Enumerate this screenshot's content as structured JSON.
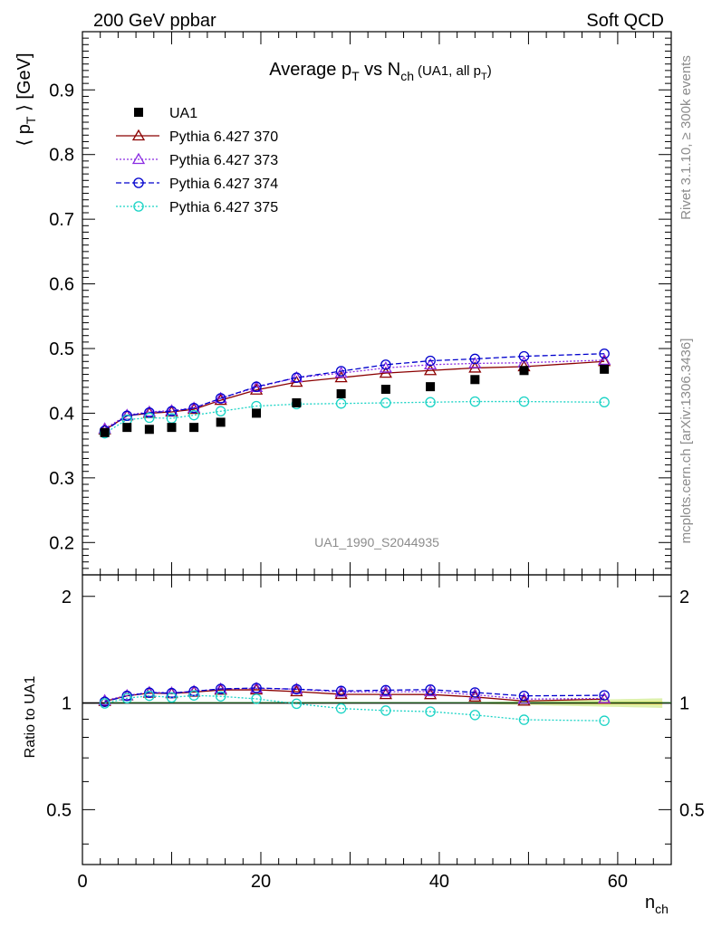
{
  "header": {
    "left": "200 GeV ppbar",
    "right": "Soft QCD"
  },
  "side_labels": {
    "rivet": "Rivet 3.1.10, ≥ 300k events",
    "mcplots": "mcplots.cern.ch [arXiv:1306.3436]"
  },
  "chart_data": {
    "type": "line",
    "title": "Average p_T vs N_ch (UA1, all p_T)",
    "title_parts": {
      "main": "Average p",
      "sub1": "T",
      "mid": " vs N",
      "sub2": "ch",
      "small": "(UA1, all p",
      "small_sub": "T",
      "small_end": ")"
    },
    "analysis_label": "UA1_1990_S2044935",
    "xlabel": "n_ch",
    "xlabel_parts": {
      "main": "n",
      "sub": "ch"
    },
    "ylabel": "⟨ p_T ⟩ [GeV]",
    "ylabel_parts": {
      "pre": "⟨ p",
      "sub": "T",
      "post": " ⟩ [GeV]"
    },
    "ratio_ylabel": "Ratio to UA1",
    "xlim": [
      0,
      66
    ],
    "ylim": [
      0.15,
      0.99
    ],
    "ratio_ylim": [
      0.35,
      2.3
    ],
    "x_ticks": [
      0,
      20,
      40,
      60
    ],
    "x_tick_labels": [
      "0",
      "20",
      "40",
      "60"
    ],
    "y_ticks": [
      0.2,
      0.3,
      0.4,
      0.5,
      0.6,
      0.7,
      0.8,
      0.9
    ],
    "y_tick_labels": [
      "0.2",
      "0.3",
      "0.4",
      "0.5",
      "0.6",
      "0.7",
      "0.8",
      "0.9"
    ],
    "ratio_ticks": [
      0.5,
      1,
      2
    ],
    "ratio_tick_labels": [
      "0.5",
      "1",
      "2"
    ],
    "x": [
      2.5,
      5,
      7.5,
      10,
      12.5,
      15.5,
      19.5,
      24,
      29,
      34,
      39,
      44,
      49.5,
      58.5
    ],
    "data": {
      "name": "UA1",
      "values": [
        0.37,
        0.378,
        0.375,
        0.378,
        0.378,
        0.386,
        0.4,
        0.416,
        0.43,
        0.437,
        0.441,
        0.452,
        0.466,
        0.468
      ]
    },
    "series": [
      {
        "name": "Pythia 6.427 370",
        "color": "#8b0000",
        "dash": "",
        "marker": "triangle",
        "values": [
          0.374,
          0.396,
          0.4,
          0.402,
          0.406,
          0.42,
          0.436,
          0.448,
          0.455,
          0.462,
          0.466,
          0.47,
          0.472,
          0.48
        ]
      },
      {
        "name": "Pythia 6.427 373",
        "color": "#8a2be2",
        "dash": "2,2",
        "marker": "triangle",
        "values": [
          0.376,
          0.397,
          0.402,
          0.404,
          0.408,
          0.423,
          0.44,
          0.455,
          0.462,
          0.47,
          0.475,
          0.477,
          0.478,
          0.482
        ]
      },
      {
        "name": "Pythia 6.427 374",
        "color": "#0000cd",
        "dash": "6,3",
        "marker": "circle",
        "values": [
          0.373,
          0.396,
          0.401,
          0.403,
          0.408,
          0.423,
          0.441,
          0.455,
          0.465,
          0.475,
          0.481,
          0.484,
          0.488,
          0.492
        ]
      },
      {
        "name": "Pythia 6.427 375",
        "color": "#19d3c5",
        "dash": "2,2",
        "marker": "circle",
        "values": [
          0.369,
          0.39,
          0.393,
          0.392,
          0.397,
          0.403,
          0.411,
          0.414,
          0.415,
          0.416,
          0.417,
          0.418,
          0.418,
          0.417
        ]
      }
    ]
  }
}
